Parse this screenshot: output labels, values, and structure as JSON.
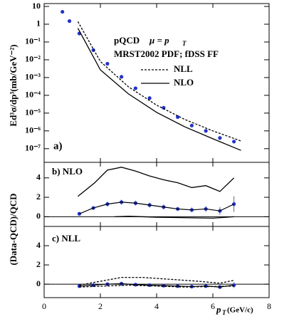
{
  "chart_data": [
    {
      "type": "line",
      "panel_label": "a)",
      "ylabel": "Ed³σ/dp³(mb/GeV⁻²)",
      "log_scale": true,
      "xlim": [
        0,
        8
      ],
      "xticks": [
        0,
        2,
        4,
        6,
        8
      ],
      "ylim": [
        1.7e-08,
        14.5
      ],
      "yticks": [
        {
          "value": 10,
          "label": "10"
        },
        {
          "value": 1,
          "label": "1"
        },
        {
          "value": 0.1,
          "label": "10⁻¹"
        },
        {
          "value": 0.01,
          "label": "10⁻²"
        },
        {
          "value": 0.001,
          "label": "10⁻³"
        },
        {
          "value": 0.0001,
          "label": "10⁻⁴"
        },
        {
          "value": 1e-05,
          "label": "10⁻⁵"
        },
        {
          "value": 1e-06,
          "label": "10⁻⁶"
        },
        {
          "value": 1e-07,
          "label": "10⁻⁷"
        }
      ],
      "annotations": [
        "pQCD",
        "μ = p",
        "T",
        "MRST2002 PDF; fDSS FF"
      ],
      "series": [
        {
          "style": "points",
          "color": "#2233cc",
          "x": [
            0.65,
            0.9,
            1.25,
            1.75,
            2.25,
            2.75,
            3.25,
            3.75,
            4.25,
            4.75,
            5.25,
            5.75,
            6.25,
            6.75
          ],
          "values": [
            5,
            1.5,
            0.3,
            0.035,
            0.006,
            0.0011,
            0.00025,
            7e-05,
            2e-05,
            6e-06,
            2e-06,
            1e-06,
            4e-07,
            2.5e-07
          ]
        },
        {
          "name": "NLL",
          "style": "dashed",
          "color": "#000000",
          "x": [
            1.2,
            2,
            3,
            4,
            5,
            6,
            7
          ],
          "values": [
            1.4,
            0.008,
            0.0003,
            2.8e-05,
            4.4e-06,
            1e-06,
            2.7e-07
          ]
        },
        {
          "name": "NLO",
          "style": "solid",
          "color": "#000000",
          "x": [
            1.2,
            2,
            3,
            4,
            5,
            6,
            7
          ],
          "values": [
            0.6,
            0.0027,
            0.00012,
            1.1e-05,
            1.7e-06,
            3.6e-07,
            8e-08
          ]
        }
      ]
    },
    {
      "type": "line",
      "panel_label": "b) NLO",
      "ylabel": "(Data-QCD)/QCD",
      "xlim": [
        0,
        8
      ],
      "xticks": [
        0,
        2,
        4,
        6,
        8
      ],
      "ylim": [
        -1,
        5.6
      ],
      "yticks": [
        0,
        2,
        4
      ],
      "hline": 0,
      "series": [
        {
          "style": "points",
          "color": "#2233cc",
          "x": [
            1.25,
            1.75,
            2.25,
            2.75,
            3.25,
            3.75,
            4.25,
            4.75,
            5.25,
            5.75,
            6.25,
            6.75
          ],
          "values": [
            0.3,
            0.9,
            1.3,
            1.5,
            1.4,
            1.2,
            1.0,
            0.8,
            0.7,
            0.8,
            0.6,
            1.3
          ],
          "errors": [
            0.1,
            0.15,
            0.25,
            0.25,
            0.25,
            0.25,
            0.25,
            0.2,
            0.25,
            0.3,
            0.4,
            0.8
          ]
        },
        {
          "style": "solid",
          "color": "#000000",
          "x": [
            1.2,
            1.8,
            2.25,
            2.75,
            3.25,
            3.75,
            4.25,
            4.75,
            5.25,
            5.75,
            6.25,
            6.75
          ],
          "values": [
            2.1,
            3.5,
            4.8,
            5.1,
            4.7,
            4.2,
            3.8,
            3.5,
            3.0,
            3.2,
            2.6,
            4.0
          ]
        },
        {
          "style": "solid",
          "color": "#000000",
          "x": [
            2.5,
            3,
            4,
            5,
            6,
            6.75
          ],
          "values": [
            0,
            0.05,
            -0.05,
            -0.1,
            -0.15,
            0
          ]
        }
      ]
    },
    {
      "type": "line",
      "panel_label": "c) NLL",
      "xlim": [
        0,
        8
      ],
      "xticks": [
        0,
        2,
        4,
        6,
        8
      ],
      "ylim": [
        -1.4,
        6
      ],
      "yticks": [
        0,
        2,
        4
      ],
      "hline": 0,
      "xlabel": "p",
      "xlabel_sub": "T",
      "xlabel_unit": "(GeV/c)",
      "series": [
        {
          "style": "points",
          "color": "#2233cc",
          "x": [
            1.25,
            1.75,
            2.25,
            2.75,
            3.25,
            3.75,
            4.25,
            4.75,
            5.25,
            5.75,
            6.25,
            6.75
          ],
          "values": [
            -0.2,
            -0.1,
            0,
            0.05,
            -0.05,
            -0.1,
            -0.15,
            -0.2,
            -0.25,
            -0.2,
            -0.3,
            -0.1
          ],
          "errors": [
            0.1,
            0.1,
            0.1,
            0.1,
            0.1,
            0.1,
            0.1,
            0.1,
            0.1,
            0.1,
            0.15,
            0.3
          ]
        },
        {
          "style": "dashed",
          "color": "#000000",
          "x": [
            1.25,
            2,
            2.75,
            3.5,
            4.5,
            5.5,
            6.25,
            6.75
          ],
          "values": [
            -0.1,
            0.3,
            0.7,
            0.7,
            0.5,
            0.3,
            0.1,
            0.4
          ]
        },
        {
          "style": "dashed",
          "color": "#000000",
          "x": [
            1.25,
            3,
            5,
            6.75
          ],
          "values": [
            -0.3,
            -0.1,
            -0.3,
            -0.2
          ]
        }
      ]
    }
  ]
}
